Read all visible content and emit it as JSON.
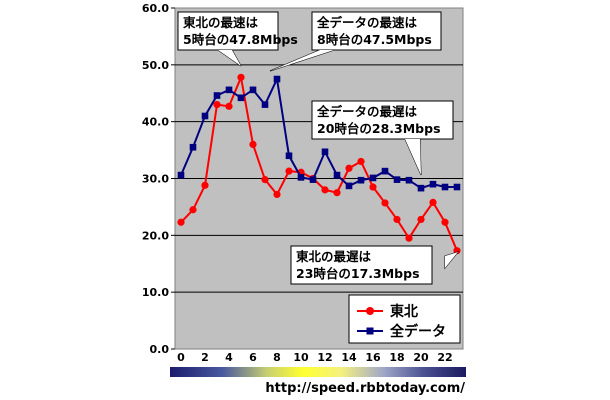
{
  "chart_data": {
    "type": "line",
    "x": [
      0,
      1,
      2,
      3,
      4,
      5,
      6,
      7,
      8,
      9,
      10,
      11,
      12,
      13,
      14,
      15,
      16,
      17,
      18,
      19,
      20,
      21,
      22,
      23
    ],
    "x_tick_labels": [
      "0",
      "2",
      "4",
      "6",
      "8",
      "10",
      "12",
      "14",
      "16",
      "18",
      "20",
      "22"
    ],
    "ylim": [
      0,
      60
    ],
    "y_tick_labels": [
      "0.0",
      "10.0",
      "20.0",
      "30.0",
      "40.0",
      "50.0",
      "60.0"
    ],
    "grid": true,
    "legend_position": "bottom-right",
    "series": [
      {
        "name": "東北",
        "color": "#ff0000",
        "marker": "circle",
        "values": [
          22.3,
          24.5,
          28.8,
          43.0,
          42.7,
          47.8,
          36.0,
          29.8,
          27.2,
          31.3,
          31.1,
          30.0,
          28.0,
          27.5,
          31.8,
          33.0,
          28.5,
          25.7,
          22.8,
          19.5,
          22.8,
          25.8,
          22.3,
          17.3
        ]
      },
      {
        "name": "全データ",
        "color": "#000080",
        "marker": "square",
        "values": [
          30.6,
          35.5,
          41.0,
          44.6,
          45.6,
          44.2,
          45.6,
          43.0,
          47.5,
          34.0,
          30.2,
          29.8,
          34.7,
          30.6,
          28.7,
          29.7,
          30.1,
          31.3,
          29.8,
          29.7,
          28.3,
          29.0,
          28.5,
          28.5
        ]
      }
    ],
    "annotations": [
      {
        "id": "tohoku-max",
        "lines": [
          "東北の最速は",
          "5時台の47.8Mbps"
        ]
      },
      {
        "id": "all-max",
        "lines": [
          "全データの最速は",
          "8時台の47.5Mbps"
        ]
      },
      {
        "id": "all-min",
        "lines": [
          "全データの最遅は",
          "20時台の28.3Mbps"
        ]
      },
      {
        "id": "tohoku-min",
        "lines": [
          "東北の最遅は",
          "23時台の17.3Mbps"
        ]
      }
    ]
  },
  "url": "http://speed.rbbtoday.com/"
}
